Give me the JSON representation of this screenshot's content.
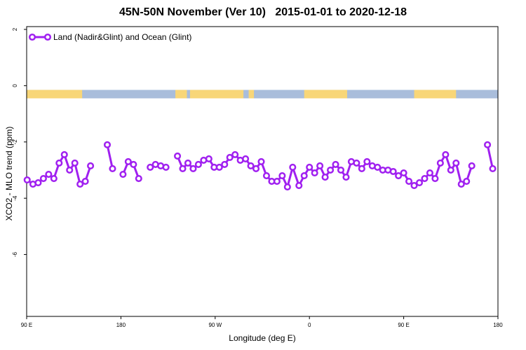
{
  "chart_data": {
    "type": "line",
    "title": "45N-50N November (Ver 10)   2015-01-01 to 2020-12-18",
    "xlabel": "Longitude (deg E)",
    "ylabel": "XCO2 - MLO trend (ppm)",
    "xlim": [
      90,
      540
    ],
    "ylim": [
      -8.2,
      2.1
    ],
    "x_ticks": [
      {
        "value": 90,
        "label": "90 E"
      },
      {
        "value": 180,
        "label": "180"
      },
      {
        "value": 270,
        "label": "90 W"
      },
      {
        "value": 360,
        "label": "0"
      },
      {
        "value": 450,
        "label": "90 E"
      },
      {
        "value": 540,
        "label": "180"
      }
    ],
    "y_ticks": [
      {
        "value": 2,
        "label": "2"
      },
      {
        "value": 0,
        "label": "0"
      },
      {
        "value": -2,
        "label": "-2"
      },
      {
        "value": -4,
        "label": "-4"
      },
      {
        "value": -6,
        "label": "-6"
      }
    ],
    "grid": false,
    "legend_position": "top-left",
    "land_ocean_band": {
      "y_range": [
        -0.45,
        -0.15
      ],
      "land_color": "#f8d678",
      "ocean_color": "#a9bddb",
      "land_segments": [
        [
          90,
          143
        ],
        [
          232,
          243
        ],
        [
          246,
          297
        ],
        [
          302,
          307
        ],
        [
          355,
          396
        ],
        [
          460,
          500
        ]
      ]
    },
    "series": [
      {
        "name": "Land (Nadir&Glint) and Ocean (Glint)",
        "color": "#a020f0",
        "segments": [
          [
            [
              90.5,
              -3.35
            ],
            [
              96,
              -3.5
            ],
            [
              101,
              -3.45
            ],
            [
              106,
              -3.3
            ],
            [
              111,
              -3.15
            ],
            [
              116,
              -3.3
            ],
            [
              121,
              -2.75
            ],
            [
              126,
              -2.45
            ],
            [
              131,
              -3.0
            ],
            [
              136,
              -2.75
            ],
            [
              141,
              -3.5
            ],
            [
              146,
              -3.4
            ],
            [
              151,
              -2.85
            ]
          ],
          [
            [
              167,
              -2.1
            ],
            [
              172,
              -2.95
            ]
          ],
          [
            [
              182,
              -3.15
            ],
            [
              187,
              -2.7
            ],
            [
              192,
              -2.8
            ],
            [
              197,
              -3.3
            ]
          ],
          [
            [
              208,
              -2.9
            ],
            [
              213,
              -2.8
            ],
            [
              218,
              -2.85
            ],
            [
              223,
              -2.9
            ]
          ],
          [
            [
              234,
              -2.5
            ],
            [
              239,
              -2.95
            ],
            [
              244,
              -2.75
            ],
            [
              249,
              -2.95
            ],
            [
              254,
              -2.8
            ],
            [
              259,
              -2.65
            ],
            [
              264,
              -2.6
            ],
            [
              269,
              -2.9
            ],
            [
              274,
              -2.9
            ],
            [
              279,
              -2.8
            ],
            [
              284,
              -2.55
            ],
            [
              289,
              -2.45
            ],
            [
              294,
              -2.65
            ],
            [
              299,
              -2.6
            ],
            [
              304,
              -2.85
            ],
            [
              309,
              -2.95
            ],
            [
              314,
              -2.7
            ],
            [
              319,
              -3.2
            ],
            [
              324,
              -3.4
            ],
            [
              329,
              -3.4
            ],
            [
              334,
              -3.2
            ],
            [
              339,
              -3.6
            ],
            [
              344,
              -2.9
            ],
            [
              350,
              -3.55
            ],
            [
              355,
              -3.2
            ],
            [
              360,
              -2.9
            ],
            [
              365,
              -3.1
            ],
            [
              370,
              -2.85
            ],
            [
              375,
              -3.25
            ],
            [
              380,
              -3.0
            ],
            [
              385,
              -2.8
            ],
            [
              390,
              -3.0
            ],
            [
              395,
              -3.25
            ],
            [
              400,
              -2.7
            ],
            [
              405,
              -2.75
            ],
            [
              410,
              -2.95
            ],
            [
              415,
              -2.7
            ],
            [
              420,
              -2.85
            ],
            [
              425,
              -2.9
            ],
            [
              430,
              -3.0
            ],
            [
              435,
              -3.0
            ],
            [
              440,
              -3.05
            ],
            [
              445,
              -3.2
            ],
            [
              450,
              -3.1
            ],
            [
              455,
              -3.4
            ],
            [
              460,
              -3.55
            ],
            [
              465,
              -3.45
            ],
            [
              470,
              -3.3
            ],
            [
              475,
              -3.1
            ],
            [
              480,
              -3.3
            ],
            [
              485,
              -2.75
            ],
            [
              490,
              -2.45
            ],
            [
              495,
              -3.0
            ],
            [
              500,
              -2.75
            ],
            [
              505,
              -3.5
            ],
            [
              510,
              -3.4
            ],
            [
              515,
              -2.85
            ]
          ],
          [
            [
              530,
              -2.1
            ],
            [
              535,
              -2.95
            ]
          ]
        ]
      }
    ]
  }
}
